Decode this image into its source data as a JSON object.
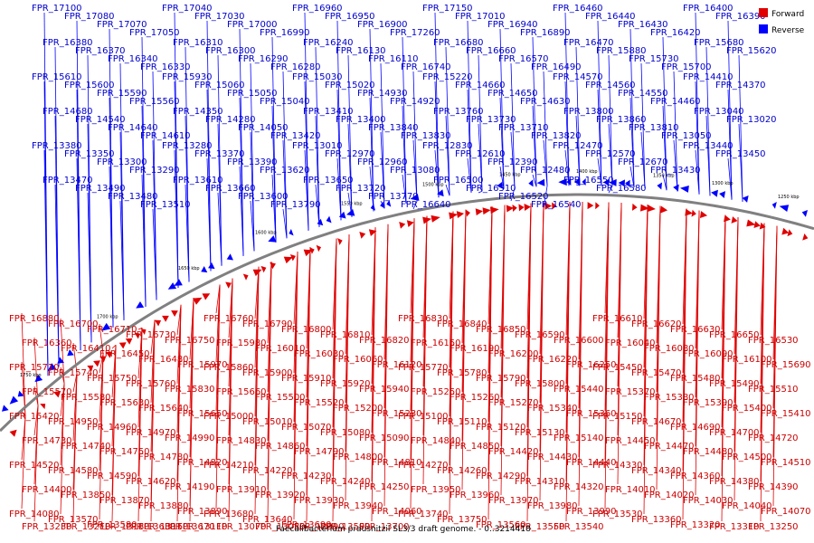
{
  "caption": "Faecalibacterium prausnitzii SL3/3 draft genome. - 0..3214418",
  "legend": [
    {
      "label": "Forward",
      "color": "#e00000"
    },
    {
      "label": "Reverse",
      "color": "#0000ff"
    }
  ],
  "colors": {
    "forward": "#e00000",
    "reverse": "#0000ff",
    "backbone": "#808080",
    "text_forward": "#cc0000",
    "text_reverse": "#0000cc"
  },
  "ticks": [
    "1750 kbp",
    "1700 kbp",
    "1650 kbp",
    "1600 kbp",
    "1550 kbp",
    "1500 kbp",
    "1450 kbp",
    "1400 kbp",
    "1350 kbp",
    "1300 kbp",
    "1250 kbp"
  ],
  "reverse_labels": [
    "FPR_17100",
    "FPR_17080",
    "FPR_17070",
    "FPR_17050",
    "FPR_17040",
    "FPR_17030",
    "FPR_17000",
    "FPR_16990",
    "FPR_16960",
    "FPR_16950",
    "FPR_16900",
    "FPR_17260",
    "FPR_17150",
    "FPR_17010",
    "FPR_16940",
    "FPR_16890",
    "FPR_16460",
    "FPR_16440",
    "FPR_16430",
    "FPR_16420",
    "FPR_16400",
    "FPR_16390",
    "FPR_16380",
    "FPR_16370",
    "FPR_16340",
    "FPR_16330",
    "FPR_16310",
    "FPR_16300",
    "FPR_16290",
    "FPR_16280",
    "FPR_16240",
    "FPR_16130",
    "FPR_16110",
    "FPR_16740",
    "FPR_16680",
    "FPR_16660",
    "FPR_16570",
    "FPR_16490",
    "FPR_16470",
    "FPR_15880",
    "FPR_15730",
    "FPR_15700",
    "FPR_15680",
    "FPR_15620",
    "FPR_15610",
    "FPR_15600",
    "FPR_15590",
    "FPR_15560",
    "FPR_15930",
    "FPR_15060",
    "FPR_15050",
    "FPR_15040",
    "FPR_15030",
    "FPR_15020",
    "FPR_14930",
    "FPR_14920",
    "FPR_15220",
    "FPR_14660",
    "FPR_14650",
    "FPR_14630",
    "FPR_14570",
    "FPR_14560",
    "FPR_14550",
    "FPR_14460",
    "FPR_14410",
    "FPR_14370",
    "FPR_14680",
    "FPR_14540",
    "FPR_14640",
    "FPR_14610",
    "FPR_14350",
    "FPR_14280",
    "FPR_14050",
    "FPR_13420",
    "FPR_13410",
    "FPR_13400",
    "FPR_13840",
    "FPR_13830",
    "FPR_13760",
    "FPR_13730",
    "FPR_13710",
    "FPR_13820",
    "FPR_13800",
    "FPR_13860",
    "FPR_13810",
    "FPR_13050",
    "FPR_13040",
    "FPR_13020",
    "FPR_13380",
    "FPR_13350",
    "FPR_13300",
    "FPR_13290",
    "FPR_13280",
    "FPR_13370",
    "FPR_13390",
    "FPR_13620",
    "FPR_13010",
    "FPR_12970",
    "FPR_12960",
    "FPR_13080",
    "FPR_12830",
    "FPR_12610",
    "FPR_12390",
    "FPR_12480",
    "FPR_12470",
    "FPR_12570",
    "FPR_12670",
    "FPR_13430",
    "FPR_13440",
    "FPR_13450",
    "FPR_13470",
    "FPR_13490",
    "FPR_13480",
    "FPR_13510",
    "FPR_13610",
    "FPR_13660",
    "FPR_13600",
    "FPR_13790",
    "FPR_13650",
    "FPR_13720",
    "FPR_13770",
    "FPR_16640",
    "FPR_16500",
    "FPR_16510",
    "FPR_16520",
    "FPR_16540",
    "FPR_16550",
    "FPR_16580"
  ],
  "forward_labels": [
    "FPR_16880",
    "FPR_16700",
    "FPR_16710",
    "FPR_16730",
    "FPR_16750",
    "FPR_16760",
    "FPR_16790",
    "FPR_16800",
    "FPR_16810",
    "FPR_16820",
    "FPR_16830",
    "FPR_16840",
    "FPR_16850",
    "FPR_16590",
    "FPR_16600",
    "FPR_16610",
    "FPR_16620",
    "FPR_16630",
    "FPR_16650",
    "FPR_16530",
    "FPR_16360",
    "FPR_16410",
    "FPR_16450",
    "FPR_16480",
    "FPR_15970",
    "FPR_15980",
    "FPR_16010",
    "FPR_16030",
    "FPR_16060",
    "FPR_16120",
    "FPR_16150",
    "FPR_16190",
    "FPR_16200",
    "FPR_16220",
    "FPR_16250",
    "FPR_16040",
    "FPR_16080",
    "FPR_16090",
    "FPR_16100",
    "FPR_15690",
    "FPR_15710",
    "FPR_15740",
    "FPR_15750",
    "FPR_15760",
    "FPR_15830",
    "FPR_15860",
    "FPR_15900",
    "FPR_15910",
    "FPR_15920",
    "FPR_15940",
    "FPR_15770",
    "FPR_15780",
    "FPR_15790",
    "FPR_15800",
    "FPR_15440",
    "FPR_15450",
    "FPR_15470",
    "FPR_15480",
    "FPR_15490",
    "FPR_15510",
    "FPR_15570",
    "FPR_15580",
    "FPR_15630",
    "FPR_15640",
    "FPR_15650",
    "FPR_15660",
    "FPR_15500",
    "FPR_15520",
    "FPR_15200",
    "FPR_15230",
    "FPR_15250",
    "FPR_15260",
    "FPR_15270",
    "FPR_15340",
    "FPR_15360",
    "FPR_15370",
    "FPR_15380",
    "FPR_15390",
    "FPR_15400",
    "FPR_15410",
    "FPR_15420",
    "FPR_14950",
    "FPR_14960",
    "FPR_14970",
    "FPR_14990",
    "FPR_15000",
    "FPR_15010",
    "FPR_15070",
    "FPR_15080",
    "FPR_15090",
    "FPR_15100",
    "FPR_15110",
    "FPR_15120",
    "FPR_15130",
    "FPR_15140",
    "FPR_15150",
    "FPR_14670",
    "FPR_14690",
    "FPR_14700",
    "FPR_14720",
    "FPR_14730",
    "FPR_14740",
    "FPR_14750",
    "FPR_14780",
    "FPR_14820",
    "FPR_14830",
    "FPR_14860",
    "FPR_14790",
    "FPR_14800",
    "FPR_14810",
    "FPR_14840",
    "FPR_14850",
    "FPR_14420",
    "FPR_14430",
    "FPR_14440",
    "FPR_14450",
    "FPR_14470",
    "FPR_14480",
    "FPR_14500",
    "FPR_14510",
    "FPR_14520",
    "FPR_14580",
    "FPR_14590",
    "FPR_14620",
    "FPR_14190",
    "FPR_14210",
    "FPR_14220",
    "FPR_14230",
    "FPR_14240",
    "FPR_14250",
    "FPR_14270",
    "FPR_14260",
    "FPR_14290",
    "FPR_14310",
    "FPR_14320",
    "FPR_14330",
    "FPR_14340",
    "FPR_14360",
    "FPR_14380",
    "FPR_14390",
    "FPR_14400",
    "FPR_13850",
    "FPR_13870",
    "FPR_13880",
    "FPR_13890",
    "FPR_13910",
    "FPR_13920",
    "FPR_13930",
    "FPR_13940",
    "FPR_14060",
    "FPR_13950",
    "FPR_13960",
    "FPR_13970",
    "FPR_13980",
    "FPR_13990",
    "FPR_14010",
    "FPR_14020",
    "FPR_14030",
    "FPR_14040",
    "FPR_14070",
    "FPR_14080",
    "FPR_13570",
    "FPR_13580",
    "FPR_13630",
    "FPR_13670",
    "FPR_13680",
    "FPR_13640",
    "FPR_13690",
    "FPR_13590",
    "FPR_13700",
    "FPR_13740",
    "FPR_13750",
    "FPR_13560",
    "FPR_13550",
    "FPR_13540",
    "FPR_13530",
    "FPR_13360",
    "FPR_13320",
    "FPR_13310",
    "FPR_13250",
    "FPR_13230",
    "FPR_13210",
    "FPR_13180",
    "FPR_13150",
    "FPR_13110",
    "FPR_13070",
    "FPR_13030",
    "FPR_12990"
  ]
}
